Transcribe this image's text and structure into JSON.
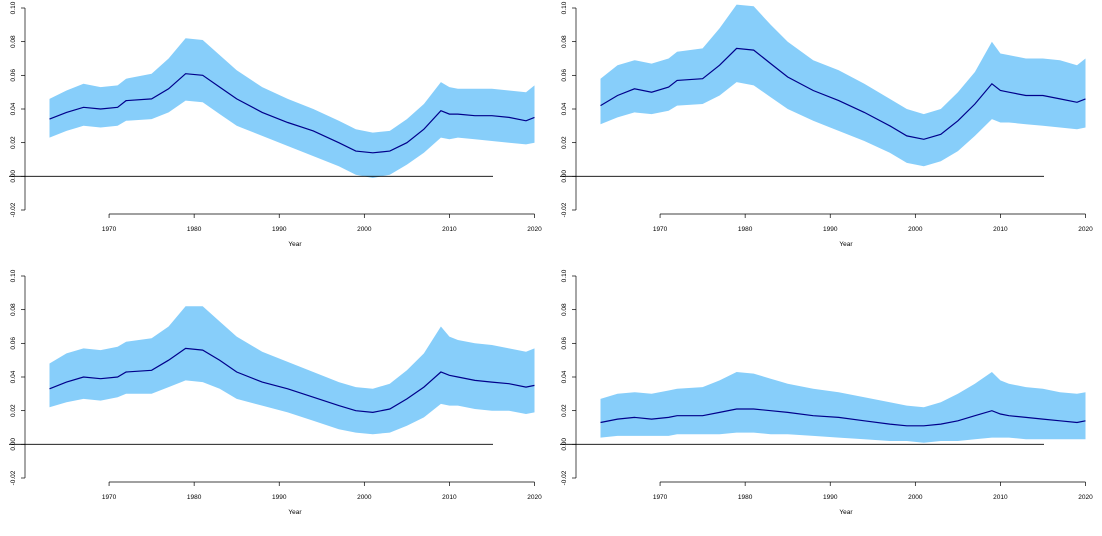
{
  "figure": {
    "colors": {
      "band": "#87cefa",
      "line": "#00008b",
      "axis": "#000000",
      "zero_line": "#000000"
    }
  },
  "chart_data": [
    {
      "type": "area",
      "xlabel": "Year",
      "ylabel": "",
      "xlim": [
        1962,
        2021
      ],
      "ylim": [
        -0.02,
        0.1
      ],
      "xticks": [
        1970,
        1980,
        1990,
        2000,
        2010,
        2020
      ],
      "yticks": [
        "-0.02",
        "0.00",
        "0.02",
        "0.04",
        "0.06",
        "0.08",
        "0.10"
      ],
      "reference_line": 0.0,
      "x": [
        1963,
        1965,
        1967,
        1969,
        1971,
        1972,
        1975,
        1977,
        1979,
        1981,
        1983,
        1985,
        1988,
        1991,
        1994,
        1997,
        1999,
        2001,
        2003,
        2005,
        2007,
        2009,
        2010,
        2011,
        2013,
        2015,
        2017,
        2019,
        2020
      ],
      "series": [
        {
          "role": "estimate",
          "values": [
            0.034,
            0.038,
            0.041,
            0.04,
            0.041,
            0.045,
            0.046,
            0.052,
            0.061,
            0.06,
            0.053,
            0.046,
            0.038,
            0.032,
            0.027,
            0.02,
            0.015,
            0.014,
            0.015,
            0.02,
            0.028,
            0.039,
            0.037,
            0.037,
            0.036,
            0.036,
            0.035,
            0.033,
            0.035
          ]
        },
        {
          "role": "upper",
          "values": [
            0.046,
            0.051,
            0.055,
            0.053,
            0.054,
            0.058,
            0.061,
            0.07,
            0.082,
            0.081,
            0.072,
            0.063,
            0.053,
            0.046,
            0.04,
            0.033,
            0.028,
            0.026,
            0.027,
            0.034,
            0.043,
            0.056,
            0.053,
            0.052,
            0.052,
            0.052,
            0.051,
            0.05,
            0.054
          ]
        },
        {
          "role": "lower",
          "values": [
            0.023,
            0.027,
            0.03,
            0.029,
            0.03,
            0.033,
            0.034,
            0.038,
            0.045,
            0.044,
            0.037,
            0.03,
            0.024,
            0.018,
            0.012,
            0.006,
            0.001,
            -0.001,
            0.001,
            0.007,
            0.014,
            0.023,
            0.022,
            0.023,
            0.022,
            0.021,
            0.02,
            0.019,
            0.02
          ]
        }
      ]
    },
    {
      "type": "area",
      "xlabel": "Year",
      "ylabel": "",
      "xlim": [
        1962,
        2021
      ],
      "ylim": [
        -0.02,
        0.1
      ],
      "xticks": [
        1970,
        1980,
        1990,
        2000,
        2010,
        2020
      ],
      "yticks": [
        "-0.02",
        "0.00",
        "0.02",
        "0.04",
        "0.06",
        "0.08",
        "0.10"
      ],
      "reference_line": 0.0,
      "x": [
        1963,
        1965,
        1967,
        1969,
        1971,
        1972,
        1975,
        1977,
        1979,
        1981,
        1983,
        1985,
        1988,
        1991,
        1994,
        1997,
        1999,
        2001,
        2003,
        2005,
        2007,
        2009,
        2010,
        2011,
        2013,
        2015,
        2017,
        2019,
        2020
      ],
      "series": [
        {
          "role": "estimate",
          "values": [
            0.042,
            0.048,
            0.052,
            0.05,
            0.053,
            0.057,
            0.058,
            0.066,
            0.076,
            0.075,
            0.067,
            0.059,
            0.051,
            0.045,
            0.038,
            0.03,
            0.024,
            0.022,
            0.025,
            0.033,
            0.043,
            0.055,
            0.051,
            0.05,
            0.048,
            0.048,
            0.046,
            0.044,
            0.046
          ]
        },
        {
          "role": "upper",
          "values": [
            0.058,
            0.066,
            0.069,
            0.067,
            0.07,
            0.074,
            0.076,
            0.088,
            0.102,
            0.101,
            0.09,
            0.08,
            0.069,
            0.063,
            0.055,
            0.046,
            0.04,
            0.037,
            0.04,
            0.05,
            0.062,
            0.08,
            0.073,
            0.072,
            0.07,
            0.07,
            0.069,
            0.066,
            0.07
          ]
        },
        {
          "role": "lower",
          "values": [
            0.031,
            0.035,
            0.038,
            0.037,
            0.039,
            0.042,
            0.043,
            0.048,
            0.056,
            0.054,
            0.047,
            0.04,
            0.033,
            0.027,
            0.021,
            0.014,
            0.008,
            0.006,
            0.009,
            0.015,
            0.024,
            0.034,
            0.032,
            0.032,
            0.031,
            0.03,
            0.029,
            0.028,
            0.029
          ]
        }
      ]
    },
    {
      "type": "area",
      "xlabel": "Year",
      "ylabel": "",
      "xlim": [
        1962,
        2021
      ],
      "ylim": [
        -0.02,
        0.1
      ],
      "xticks": [
        1970,
        1980,
        1990,
        2000,
        2010,
        2020
      ],
      "yticks": [
        "-0.02",
        "0.00",
        "0.02",
        "0.04",
        "0.06",
        "0.08",
        "0.10"
      ],
      "reference_line": 0.0,
      "x": [
        1963,
        1965,
        1967,
        1969,
        1971,
        1972,
        1975,
        1977,
        1979,
        1981,
        1983,
        1985,
        1988,
        1991,
        1994,
        1997,
        1999,
        2001,
        2003,
        2005,
        2007,
        2009,
        2010,
        2011,
        2013,
        2015,
        2017,
        2019,
        2020
      ],
      "series": [
        {
          "role": "estimate",
          "values": [
            0.033,
            0.037,
            0.04,
            0.039,
            0.04,
            0.043,
            0.044,
            0.05,
            0.057,
            0.056,
            0.05,
            0.043,
            0.037,
            0.033,
            0.028,
            0.023,
            0.02,
            0.019,
            0.021,
            0.027,
            0.034,
            0.043,
            0.041,
            0.04,
            0.038,
            0.037,
            0.036,
            0.034,
            0.035
          ]
        },
        {
          "role": "upper",
          "values": [
            0.048,
            0.054,
            0.057,
            0.056,
            0.058,
            0.061,
            0.063,
            0.07,
            0.082,
            0.082,
            0.073,
            0.064,
            0.055,
            0.049,
            0.043,
            0.037,
            0.034,
            0.033,
            0.036,
            0.044,
            0.054,
            0.07,
            0.064,
            0.062,
            0.06,
            0.059,
            0.057,
            0.055,
            0.057
          ]
        },
        {
          "role": "lower",
          "values": [
            0.022,
            0.025,
            0.027,
            0.026,
            0.028,
            0.03,
            0.03,
            0.034,
            0.038,
            0.037,
            0.033,
            0.027,
            0.023,
            0.019,
            0.014,
            0.009,
            0.007,
            0.006,
            0.007,
            0.011,
            0.016,
            0.024,
            0.023,
            0.023,
            0.021,
            0.02,
            0.02,
            0.018,
            0.019
          ]
        }
      ]
    },
    {
      "type": "area",
      "xlabel": "Year",
      "ylabel": "",
      "xlim": [
        1962,
        2021
      ],
      "ylim": [
        -0.02,
        0.1
      ],
      "xticks": [
        1970,
        1980,
        1990,
        2000,
        2010,
        2020
      ],
      "yticks": [
        "-0.02",
        "0.00",
        "0.02",
        "0.04",
        "0.06",
        "0.08",
        "0.10"
      ],
      "reference_line": 0.0,
      "x": [
        1963,
        1965,
        1967,
        1969,
        1971,
        1972,
        1975,
        1977,
        1979,
        1981,
        1983,
        1985,
        1988,
        1991,
        1994,
        1997,
        1999,
        2001,
        2003,
        2005,
        2007,
        2009,
        2010,
        2011,
        2013,
        2015,
        2017,
        2019,
        2020
      ],
      "series": [
        {
          "role": "estimate",
          "values": [
            0.013,
            0.015,
            0.016,
            0.015,
            0.016,
            0.017,
            0.017,
            0.019,
            0.021,
            0.021,
            0.02,
            0.019,
            0.017,
            0.016,
            0.014,
            0.012,
            0.011,
            0.011,
            0.012,
            0.014,
            0.017,
            0.02,
            0.018,
            0.017,
            0.016,
            0.015,
            0.014,
            0.013,
            0.014
          ]
        },
        {
          "role": "upper",
          "values": [
            0.027,
            0.03,
            0.031,
            0.03,
            0.032,
            0.033,
            0.034,
            0.038,
            0.043,
            0.042,
            0.039,
            0.036,
            0.033,
            0.031,
            0.028,
            0.025,
            0.023,
            0.022,
            0.025,
            0.03,
            0.036,
            0.043,
            0.038,
            0.036,
            0.034,
            0.033,
            0.031,
            0.03,
            0.031
          ]
        },
        {
          "role": "lower",
          "values": [
            0.004,
            0.005,
            0.005,
            0.005,
            0.005,
            0.006,
            0.006,
            0.006,
            0.007,
            0.007,
            0.006,
            0.006,
            0.005,
            0.004,
            0.003,
            0.002,
            0.002,
            0.001,
            0.002,
            0.002,
            0.003,
            0.004,
            0.004,
            0.004,
            0.003,
            0.003,
            0.003,
            0.003,
            0.003
          ]
        }
      ]
    }
  ]
}
